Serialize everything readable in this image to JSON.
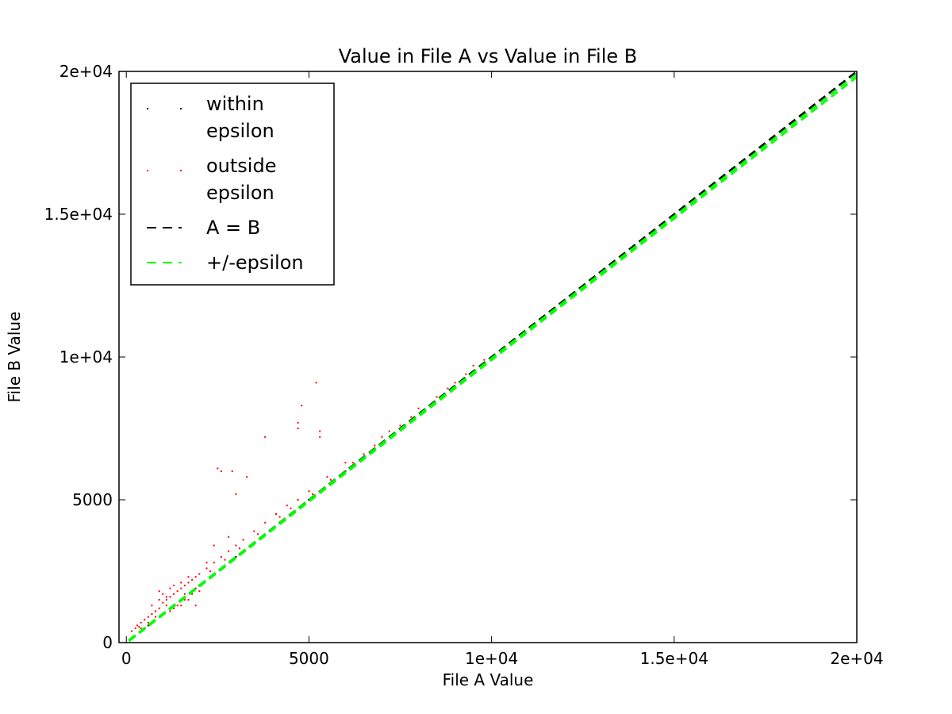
{
  "chart_data": {
    "type": "scatter",
    "title": "Value in File A vs Value in File B",
    "xlabel": "File A Value",
    "ylabel": "File B Value",
    "xlim": [
      -200,
      20000
    ],
    "ylim": [
      0,
      20000
    ],
    "x_ticks": [
      {
        "value": 0,
        "label": "0"
      },
      {
        "value": 5000,
        "label": "5000"
      },
      {
        "value": 10000,
        "label": "1e+04"
      },
      {
        "value": 15000,
        "label": "1.5e+04"
      },
      {
        "value": 20000,
        "label": "2e+04"
      }
    ],
    "y_ticks": [
      {
        "value": 0,
        "label": "0"
      },
      {
        "value": 5000,
        "label": "5000"
      },
      {
        "value": 10000,
        "label": "1e+04"
      },
      {
        "value": 15000,
        "label": "1.5e+04"
      },
      {
        "value": 20000,
        "label": "2e+04"
      }
    ],
    "grid": false,
    "legend_position": "top-left",
    "legend": [
      {
        "label_lines": [
          "within",
          "epsilon"
        ],
        "style": "point",
        "color": "#000000"
      },
      {
        "label_lines": [
          "outside",
          "epsilon"
        ],
        "style": "point",
        "color": "#ff0000"
      },
      {
        "label_lines": [
          "A = B"
        ],
        "style": "dashed-line",
        "color": "#000000"
      },
      {
        "label_lines": [
          "+/-epsilon"
        ],
        "style": "dashed-line",
        "color": "#00ff00"
      }
    ],
    "lines": [
      {
        "name": "A = B",
        "color": "#000000",
        "dash": "dashed",
        "points": [
          [
            -200,
            -200
          ],
          [
            20000,
            20000
          ]
        ]
      },
      {
        "name": "+/-epsilon",
        "color": "#00ff00",
        "dash": "dashed",
        "points": [
          [
            -200,
            -220
          ],
          [
            20000,
            19800
          ]
        ]
      },
      {
        "name": "+/-epsilon",
        "color": "#00ff00",
        "dash": "dashed",
        "points": [
          [
            -200,
            -180
          ],
          [
            20000,
            19900
          ]
        ]
      }
    ],
    "series": [
      {
        "name": "outside epsilon",
        "color": "#ff0000",
        "points": [
          [
            150,
            400
          ],
          [
            250,
            500
          ],
          [
            300,
            600
          ],
          [
            400,
            700
          ],
          [
            500,
            800
          ],
          [
            600,
            900
          ],
          [
            700,
            1000
          ],
          [
            800,
            1100
          ],
          [
            900,
            1200
          ],
          [
            1000,
            1400
          ],
          [
            1100,
            1500
          ],
          [
            1200,
            1600
          ],
          [
            1300,
            1700
          ],
          [
            1400,
            1800
          ],
          [
            1500,
            1900
          ],
          [
            1600,
            2000
          ],
          [
            1700,
            2100
          ],
          [
            1800,
            2200
          ],
          [
            1900,
            2300
          ],
          [
            2000,
            2400
          ],
          [
            2200,
            2600
          ],
          [
            2400,
            2800
          ],
          [
            2600,
            3000
          ],
          [
            2800,
            3200
          ],
          [
            3000,
            3400
          ],
          [
            3200,
            3600
          ],
          [
            3500,
            3900
          ],
          [
            3800,
            4200
          ],
          [
            4100,
            4500
          ],
          [
            4400,
            4800
          ],
          [
            4700,
            5000
          ],
          [
            5000,
            5300
          ],
          [
            5500,
            5800
          ],
          [
            6000,
            6300
          ],
          [
            6500,
            6600
          ],
          [
            7000,
            7200
          ],
          [
            7500,
            7600
          ],
          [
            8000,
            8200
          ],
          [
            8500,
            8600
          ],
          [
            9000,
            9100
          ],
          [
            9500,
            9700
          ],
          [
            900,
            1800
          ],
          [
            1100,
            1600
          ],
          [
            1300,
            2000
          ],
          [
            1700,
            1500
          ],
          [
            2000,
            1800
          ],
          [
            2500,
            6100
          ],
          [
            2600,
            6000
          ],
          [
            2900,
            6000
          ],
          [
            3000,
            5200
          ],
          [
            3300,
            5800
          ],
          [
            3800,
            7200
          ],
          [
            4700,
            7700
          ],
          [
            4800,
            8300
          ],
          [
            4700,
            7500
          ],
          [
            5200,
            9100
          ],
          [
            5300,
            7200
          ],
          [
            5300,
            7400
          ],
          [
            1900,
            1300
          ],
          [
            2400,
            3400
          ],
          [
            2800,
            3700
          ],
          [
            1000,
            1000
          ],
          [
            1200,
            1100
          ],
          [
            1500,
            1300
          ],
          [
            1800,
            1700
          ],
          [
            2100,
            2100
          ],
          [
            600,
            700
          ],
          [
            800,
            900
          ],
          [
            400,
            500
          ],
          [
            350,
            550
          ],
          [
            1400,
            1300
          ],
          [
            1600,
            1500
          ],
          [
            1900,
            1900
          ],
          [
            2300,
            2500
          ],
          [
            2700,
            2900
          ],
          [
            3100,
            3300
          ],
          [
            3600,
            3800
          ],
          [
            4200,
            4400
          ],
          [
            4500,
            4700
          ],
          [
            5100,
            5200
          ],
          [
            5600,
            5700
          ],
          [
            6200,
            6300
          ],
          [
            6800,
            6900
          ],
          [
            7200,
            7400
          ],
          [
            7800,
            7900
          ],
          [
            8300,
            8300
          ],
          [
            8800,
            8900
          ],
          [
            9300,
            9400
          ],
          [
            9800,
            9900
          ],
          [
            18500,
            18400
          ],
          [
            1000,
            1700
          ],
          [
            1200,
            1900
          ],
          [
            1500,
            2100
          ],
          [
            1700,
            2300
          ],
          [
            2200,
            2800
          ],
          [
            700,
            1300
          ],
          [
            900,
            1500
          ],
          [
            1100,
            1300
          ],
          [
            1300,
            1200
          ],
          [
            1600,
            1700
          ]
        ]
      },
      {
        "name": "within epsilon",
        "color": "#000000",
        "points": [
          [
            200,
            200
          ],
          [
            600,
            600
          ],
          [
            1000,
            1000
          ],
          [
            1500,
            1500
          ],
          [
            2000,
            2000
          ],
          [
            3000,
            3000
          ],
          [
            4000,
            4000
          ],
          [
            5000,
            5000
          ],
          [
            6000,
            6000
          ],
          [
            7000,
            7000
          ]
        ]
      }
    ]
  }
}
